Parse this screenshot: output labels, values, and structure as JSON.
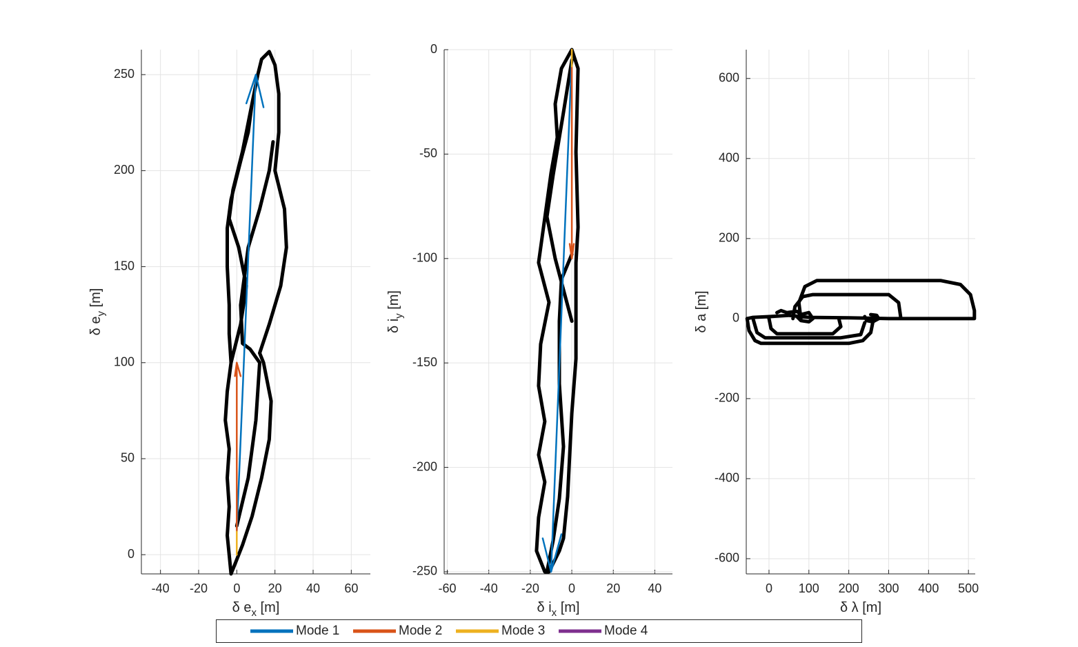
{
  "chart_data": [
    {
      "type": "line",
      "xlabel": [
        "δ e",
        "x",
        " [m]"
      ],
      "ylabel": [
        "δ e",
        "y",
        " [m]"
      ],
      "xlim": [
        -50,
        70
      ],
      "ylim": [
        -10,
        263
      ],
      "xticks": [
        -40,
        -20,
        0,
        20,
        40,
        60
      ],
      "yticks": [
        0,
        50,
        100,
        150,
        200,
        250
      ],
      "grid": true,
      "series": [
        {
          "color": "#000000",
          "x": [
            -3,
            -1,
            3,
            8,
            13,
            17,
            18,
            14,
            12,
            17,
            23,
            26,
            25,
            20,
            22,
            22,
            20,
            17,
            13,
            11,
            8,
            6,
            2,
            -3,
            -5,
            -5,
            -4,
            -4,
            -3,
            -5,
            -6,
            -4,
            -5,
            -4,
            -5,
            -4,
            -3,
            null,
            0,
            6,
            10,
            12,
            7,
            3,
            2,
            6,
            12,
            17,
            19,
            null,
            -3,
            2,
            5,
            1,
            -4,
            -2,
            3,
            8,
            11
          ],
          "y": [
            -10,
            -5,
            5,
            20,
            40,
            60,
            80,
            100,
            105,
            120,
            140,
            160,
            180,
            200,
            220,
            240,
            255,
            262,
            258,
            250,
            235,
            220,
            205,
            185,
            170,
            150,
            130,
            115,
            100,
            85,
            70,
            55,
            40,
            25,
            10,
            0,
            -10,
            null,
            15,
            40,
            70,
            100,
            107,
            110,
            130,
            160,
            180,
            200,
            215,
            null,
            100,
            120,
            140,
            160,
            175,
            190,
            210,
            235,
            250
          ]
        },
        {
          "color": "#0072BD",
          "x": [
            0,
            10,
            5,
            null,
            10,
            14
          ],
          "y": [
            12,
            250,
            235,
            null,
            250,
            233
          ]
        },
        {
          "color": "#D95319",
          "x": [
            0,
            0,
            -1,
            null,
            0,
            2
          ],
          "y": [
            12,
            100,
            93,
            null,
            100,
            93
          ]
        },
        {
          "color": "#EDB120",
          "x": [
            0,
            0
          ],
          "y": [
            0,
            12
          ]
        }
      ]
    },
    {
      "type": "line",
      "xlabel": [
        "δ i",
        "x",
        " [m]"
      ],
      "ylabel": [
        "δ i",
        "y",
        " [m]"
      ],
      "xlim": [
        -61.5,
        48.5
      ],
      "ylim": [
        -251,
        0
      ],
      "xticks": [
        -60,
        -40,
        -20,
        0,
        20,
        40
      ],
      "yticks": [
        -250,
        -200,
        -150,
        -100,
        -50,
        0
      ],
      "grid": true,
      "series": [
        {
          "color": "#000000",
          "x": [
            0,
            3,
            2,
            3,
            2,
            2,
            2,
            2,
            0,
            -1,
            -2,
            -4,
            -6,
            -11,
            -13,
            -17,
            -16,
            -13,
            -16,
            -13,
            -16,
            -15,
            -11,
            -16,
            -10,
            -7,
            -8,
            -5,
            0,
            null,
            0,
            -5,
            -6,
            -6,
            -4,
            -6,
            -9,
            -12,
            null,
            0,
            -4,
            -9,
            -12,
            -8,
            -4,
            0
          ],
          "y": [
            0,
            -9,
            -49,
            -85,
            -102,
            -121,
            -131,
            -148,
            -174,
            -194,
            -214,
            -234,
            -240,
            -250,
            -250,
            -240,
            -224,
            -207,
            -194,
            -178,
            -161,
            -141,
            -121,
            -102,
            -59,
            -42,
            -26,
            -9,
            0,
            null,
            -98,
            -110,
            -130,
            -160,
            -190,
            -215,
            -235,
            -250,
            null,
            -5,
            -30,
            -60,
            -80,
            -100,
            -115,
            -130
          ]
        },
        {
          "color": "#0072BD",
          "x": [
            0,
            -10,
            -14,
            null,
            -10,
            -5
          ],
          "y": [
            -3,
            -250,
            -234,
            null,
            -250,
            -232
          ]
        },
        {
          "color": "#D95319",
          "x": [
            0,
            0,
            -1,
            null,
            0,
            1
          ],
          "y": [
            -8,
            -100,
            -93,
            null,
            -100,
            -93
          ]
        },
        {
          "color": "#EDB120",
          "x": [
            0,
            0
          ],
          "y": [
            0,
            -8
          ]
        }
      ]
    },
    {
      "type": "line",
      "xlabel": [
        "δ λ [m]"
      ],
      "ylabel": [
        "δ a [m]"
      ],
      "xlim": [
        -57,
        517
      ],
      "ylim": [
        -638,
        672
      ],
      "xticks": [
        0,
        100,
        200,
        300,
        400,
        500
      ],
      "yticks": [
        -600,
        -400,
        -200,
        0,
        200,
        400,
        600
      ],
      "grid": true,
      "series": [
        {
          "color": "#000000",
          "x": [
            -55,
            -50,
            -35,
            -20,
            200,
            235,
            255,
            260,
            255,
            null,
            -40,
            -30,
            -10,
            180,
            230,
            240,
            null,
            0,
            5,
            20,
            160,
            180,
            175,
            null,
            80,
            75,
            90,
            120,
            430,
            480,
            505,
            515,
            515,
            null,
            60,
            65,
            85,
            110,
            300,
            325,
            330,
            null,
            -55,
            -40,
            0,
            50,
            100,
            200,
            300,
            400,
            515,
            null,
            20,
            30,
            45,
            70,
            80,
            100,
            110,
            100,
            80,
            70,
            null,
            240,
            245,
            260,
            275,
            270,
            255
          ],
          "y": [
            0,
            -30,
            -55,
            -62,
            -62,
            -55,
            -35,
            -10,
            0,
            null,
            0,
            -35,
            -48,
            -48,
            -40,
            -10,
            null,
            0,
            -25,
            -38,
            -38,
            -20,
            0,
            null,
            0,
            40,
            80,
            95,
            95,
            85,
            60,
            20,
            0,
            null,
            0,
            30,
            55,
            60,
            60,
            40,
            5,
            null,
            0,
            3,
            5,
            8,
            3,
            2,
            0,
            0,
            0,
            null,
            15,
            20,
            15,
            18,
            10,
            15,
            0,
            -8,
            -5,
            5,
            null,
            5,
            -5,
            -8,
            0,
            8,
            10
          ]
        }
      ]
    }
  ],
  "legend": [
    {
      "name": "Mode 1",
      "color": "#0072BD"
    },
    {
      "name": "Mode 2",
      "color": "#D95319"
    },
    {
      "name": "Mode 3",
      "color": "#EDB120"
    },
    {
      "name": "Mode 4",
      "color": "#7E2F8E"
    }
  ]
}
